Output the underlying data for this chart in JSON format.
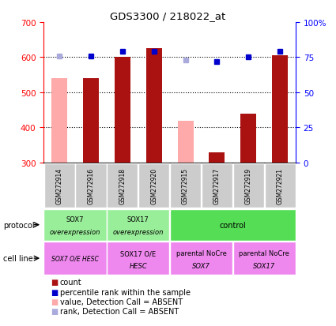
{
  "title": "GDS3300 / 218022_at",
  "samples": [
    "GSM272914",
    "GSM272916",
    "GSM272918",
    "GSM272920",
    "GSM272915",
    "GSM272917",
    "GSM272919",
    "GSM272921"
  ],
  "bar_values": [
    null,
    541,
    601,
    625,
    null,
    329,
    440,
    605
  ],
  "bar_absent_values": [
    541,
    null,
    null,
    null,
    420,
    null,
    null,
    null
  ],
  "percentile_values": [
    null,
    76,
    79,
    79,
    null,
    72,
    75,
    79
  ],
  "percentile_absent_values": [
    76,
    null,
    null,
    null,
    73,
    null,
    null,
    null
  ],
  "ylim": [
    300,
    700
  ],
  "y2lim": [
    0,
    100
  ],
  "yticks": [
    300,
    400,
    500,
    600,
    700
  ],
  "y2ticks": [
    0,
    25,
    50,
    75,
    100
  ],
  "y2ticklabels": [
    "0",
    "25",
    "50",
    "75",
    "100%"
  ],
  "bar_color": "#aa1111",
  "bar_absent_color": "#ffaaaa",
  "percentile_color": "#0000cc",
  "percentile_absent_color": "#aaaadd",
  "proto_groups": [
    {
      "label": "SOX7\noverexpression",
      "start": 0,
      "end": 1,
      "color": "#99ee99"
    },
    {
      "label": "SOX17\noverexpression",
      "start": 2,
      "end": 3,
      "color": "#99ee99"
    },
    {
      "label": "control",
      "start": 4,
      "end": 7,
      "color": "#55dd55"
    }
  ],
  "cell_groups": [
    {
      "label_top": "SOX7 O/E HESC",
      "label_bot": "",
      "start": 0,
      "end": 1,
      "color": "#ee88ee"
    },
    {
      "label_top": "SOX17 O/E",
      "label_bot": "HESC",
      "start": 2,
      "end": 3,
      "color": "#ee88ee"
    },
    {
      "label_top": "parental NoCre",
      "label_bot": "SOX7",
      "start": 4,
      "end": 5,
      "color": "#ee88ee"
    },
    {
      "label_top": "parental NoCre",
      "label_bot": "SOX17",
      "start": 6,
      "end": 7,
      "color": "#ee88ee"
    }
  ],
  "bar_width": 0.5,
  "xlim": [
    -0.5,
    7.5
  ]
}
